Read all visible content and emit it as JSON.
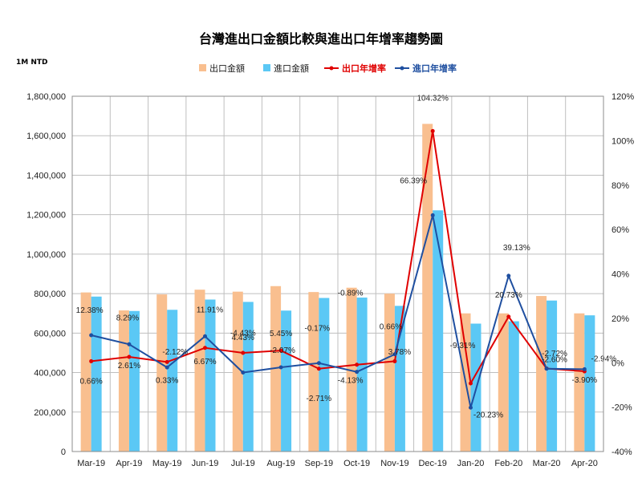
{
  "chart_data": {
    "type": "bar",
    "title": "台灣進出口金額比較與進出口年增率趨勢圖",
    "unit_label": "1M NTD",
    "categories": [
      "Mar-19",
      "Apr-19",
      "May-19",
      "Jun-19",
      "Jul-19",
      "Aug-19",
      "Sep-19",
      "Oct-19",
      "Nov-19",
      "Dec-19",
      "Jan-20",
      "Feb-20",
      "Mar-20",
      "Apr-20"
    ],
    "left_axis": {
      "min": 0,
      "max": 1800000,
      "step": 200000,
      "ticks": [
        "0",
        "200,000",
        "400,000",
        "600,000",
        "800,000",
        "1,000,000",
        "1,200,000",
        "1,400,000",
        "1,600,000",
        "1,800,000"
      ]
    },
    "right_axis": {
      "min": -40,
      "max": 120,
      "step": 20,
      "ticks": [
        "-40%",
        "-20%",
        "0%",
        "20%",
        "40%",
        "60%",
        "80%",
        "100%",
        "120%"
      ]
    },
    "grid": true,
    "legend_position": "top",
    "series": [
      {
        "name": "出口金額",
        "kind": "bar",
        "axis": "left",
        "color": "#f9bf8f",
        "values": [
          806000,
          715000,
          796000,
          820000,
          810000,
          838000,
          808000,
          830000,
          800000,
          1660000,
          700000,
          700000,
          788000,
          700000
        ]
      },
      {
        "name": "進口金額",
        "kind": "bar",
        "axis": "left",
        "color": "#5bc8f5",
        "values": [
          785000,
          712000,
          718000,
          770000,
          758000,
          714000,
          778000,
          780000,
          738000,
          1222000,
          648000,
          660000,
          765000,
          690000
        ]
      },
      {
        "name": "出口年增率",
        "kind": "line",
        "axis": "right",
        "color": "#e00000",
        "values": [
          0.66,
          2.61,
          0.33,
          6.67,
          4.43,
          5.45,
          -2.71,
          -0.89,
          0.66,
          104.32,
          -9.31,
          20.73,
          -2.6,
          -3.9
        ],
        "labels": [
          "0.66%",
          "2.61%",
          "0.33%",
          "6.67%",
          "4.43%",
          "5.45%",
          "-2.71%",
          "-0.89%",
          "0.66%",
          "104.32%",
          "-9.31%",
          "20.73%",
          "-2.60%",
          "-3.90%"
        ]
      },
      {
        "name": "進口年增率",
        "kind": "line",
        "axis": "right",
        "color": "#1f4fa0",
        "values": [
          12.38,
          8.29,
          -2.12,
          11.91,
          -4.43,
          -2.07,
          -0.17,
          -4.13,
          3.78,
          66.39,
          -20.23,
          39.13,
          -2.72,
          -2.94
        ],
        "labels": [
          "12.38%",
          "8.29%",
          "-2.12%",
          "11.91%",
          "-4.43%",
          "-2.07%",
          "-0.17%",
          "-4.13%",
          "3.78%",
          "66.39%",
          "-20.23%",
          "39.13%",
          "-2.72%",
          "-2.94%"
        ]
      }
    ]
  }
}
